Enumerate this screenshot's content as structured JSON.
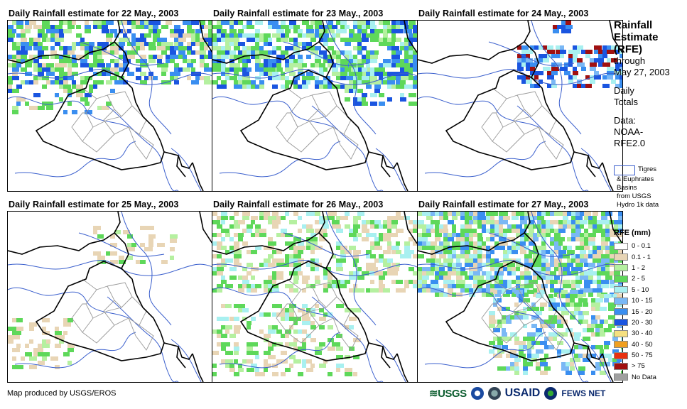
{
  "panels": [
    {
      "title": "Daily Rainfall estimate for 22 May., 2003",
      "rain_cover": "moderate-north"
    },
    {
      "title": "Daily Rainfall estimate for 23 May., 2003",
      "rain_cover": "heavy-north"
    },
    {
      "title": "Daily Rainfall estimate for 24 May., 2003",
      "rain_cover": "northeast-band"
    },
    {
      "title": "Daily Rainfall estimate for 25 May., 2003",
      "rain_cover": "sparse"
    },
    {
      "title": "Daily Rainfall estimate for 26 May., 2003",
      "rain_cover": "scattered"
    },
    {
      "title": "Daily Rainfall estimate for 27 May., 2003",
      "rain_cover": "widespread-north"
    }
  ],
  "sidebar": {
    "title_lines": [
      "Rainfall",
      "Estimate",
      "(RFE)"
    ],
    "through_label": "through",
    "through_date": "May 27, 2003",
    "daily_lines": [
      "Daily",
      "Totals"
    ],
    "data_lines": [
      "Data:",
      "NOAA-",
      "RFE2.0"
    ]
  },
  "basin_key": {
    "lines": [
      "Tigres",
      "& Euphrates",
      "Basins",
      "from USGS",
      "Hydro 1k data"
    ],
    "color": "#3a5fcd"
  },
  "legend": {
    "title": "RFE (mm)",
    "items": [
      {
        "label": "0 - 0.1",
        "color": "#ffffff"
      },
      {
        "label": "0.1 - 1",
        "color": "#e8d5b5"
      },
      {
        "label": "1 - 2",
        "color": "#b5f0a0"
      },
      {
        "label": "2 - 5",
        "color": "#5ed85a"
      },
      {
        "label": "5 - 10",
        "color": "#a8f0f0"
      },
      {
        "label": "10 - 15",
        "color": "#7ab8f5"
      },
      {
        "label": "15 - 20",
        "color": "#3a8ef0"
      },
      {
        "label": "20 - 30",
        "color": "#1a55e0"
      },
      {
        "label": "30 - 40",
        "color": "#f5e080"
      },
      {
        "label": "40 - 50",
        "color": "#f0a020"
      },
      {
        "label": "50 - 75",
        "color": "#e83010"
      },
      {
        "label": "> 75",
        "color": "#a01010"
      },
      {
        "label": "No Data",
        "color": "#a0a0a0"
      }
    ]
  },
  "credit": "Map produced by USGS/EROS",
  "logos": {
    "usgs": "≋USGS",
    "usaid": "USAID",
    "fews": "FEWS NET"
  },
  "colors": {
    "border": "#000000",
    "province": "#999999",
    "river": "#3a5fcd"
  }
}
